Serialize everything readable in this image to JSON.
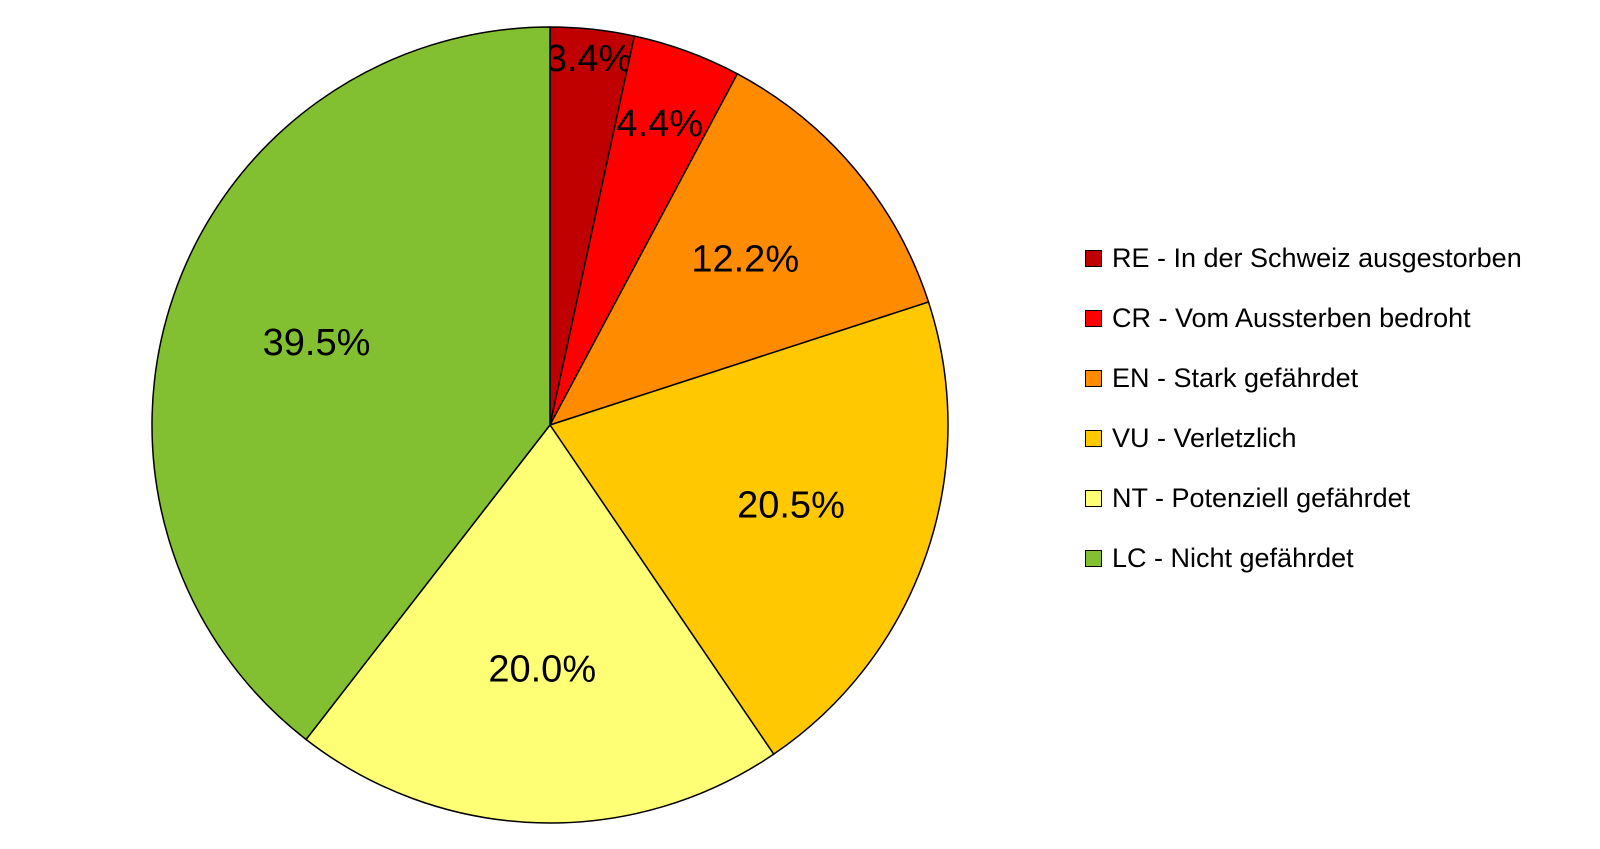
{
  "chart_data": {
    "type": "pie",
    "legend_position": "right",
    "slices": [
      {
        "label": "RE - In der Schweiz ausgestorben",
        "value": 3.4,
        "value_label": "3.4%",
        "color": "#C00000"
      },
      {
        "label": "CR - Vom Aussterben bedroht",
        "value": 4.4,
        "value_label": "4.4%",
        "color": "#FF0000"
      },
      {
        "label": "EN - Stark gefährdet",
        "value": 12.2,
        "value_label": "12.2%",
        "color": "#FF8C00"
      },
      {
        "label": "VU - Verletzlich",
        "value": 20.5,
        "value_label": "20.5%",
        "color": "#FFC800"
      },
      {
        "label": "NT - Potenziell gefährdet",
        "value": 20.0,
        "value_label": "20.0%",
        "color": "#FFFF75"
      },
      {
        "label": "LC - Nicht gefährdet",
        "value": 39.5,
        "value_label": "39.5%",
        "color": "#83C031"
      }
    ]
  }
}
